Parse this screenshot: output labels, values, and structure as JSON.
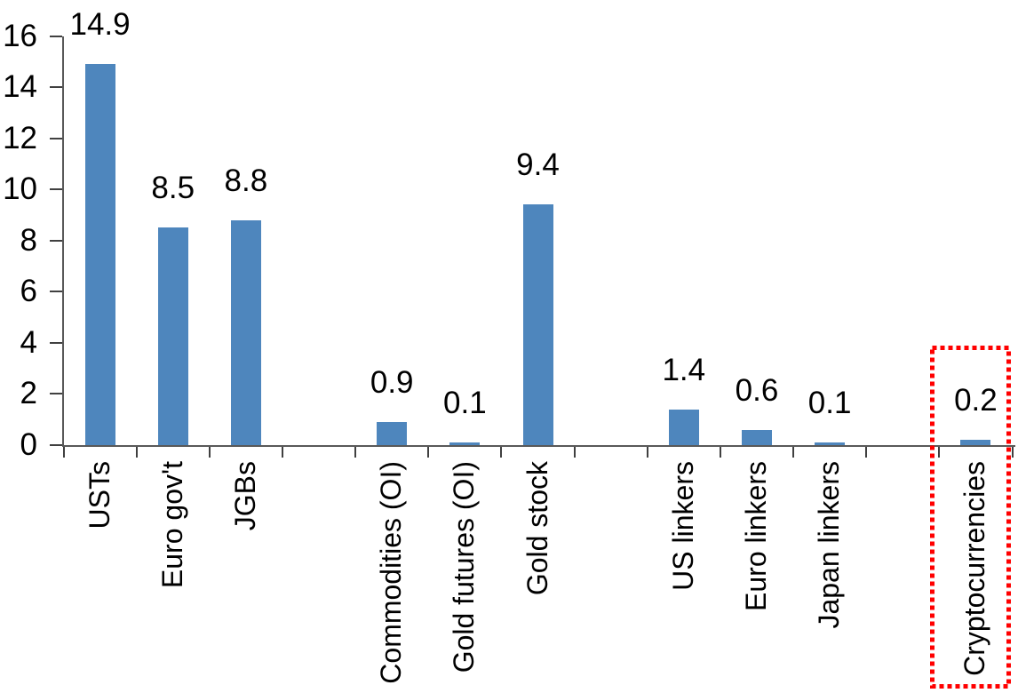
{
  "chart_data": {
    "type": "bar",
    "title": "",
    "xlabel": "",
    "ylabel": "",
    "categories": [
      "USTs",
      "Euro gov't",
      "JGBs",
      "Commodities (OI)",
      "Gold futures (OI)",
      "Gold stock",
      "US linkers",
      "Euro linkers",
      "Japan linkers",
      "Cryptocurrencies"
    ],
    "values": [
      14.9,
      8.5,
      8.8,
      0.9,
      0.1,
      9.4,
      1.4,
      0.6,
      0.1,
      0.2
    ],
    "data_labels": [
      "14.9",
      "8.5",
      "8.8",
      "0.9",
      "0.1",
      "9.4",
      "1.4",
      "0.6",
      "0.1",
      "0.2"
    ],
    "groups": [
      [
        "USTs",
        "Euro gov't",
        "JGBs"
      ],
      [
        "Commodities (OI)",
        "Gold futures (OI)",
        "Gold stock"
      ],
      [
        "US linkers",
        "Euro linkers",
        "Japan linkers"
      ],
      [
        "Cryptocurrencies"
      ]
    ],
    "slots": [
      0,
      1,
      2,
      4,
      5,
      6,
      8,
      9,
      10,
      12
    ],
    "total_slots": 13,
    "ylim": [
      0,
      16
    ],
    "yticks": [
      0,
      2,
      4,
      6,
      8,
      10,
      12,
      14,
      16
    ],
    "grid": false,
    "legend": "none",
    "bar_color": "#4E86BD",
    "axis_color": "#595959",
    "tick_color": "#404040",
    "text_color": "#000000",
    "highlight": {
      "category": "Cryptocurrencies",
      "style": "red-dotted-outline",
      "color": "#FF0000"
    }
  }
}
